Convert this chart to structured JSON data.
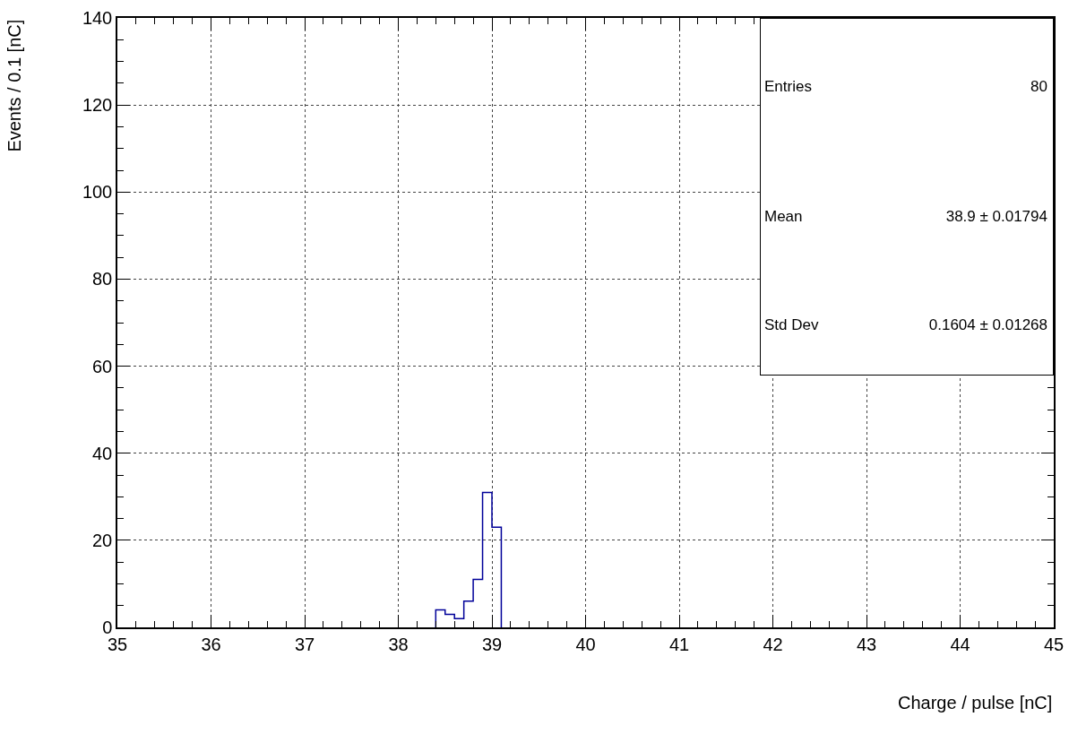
{
  "chart_data": {
    "type": "histogram",
    "xlabel": "Charge / pulse [nC]",
    "ylabel": "Events / 0.1 [nC]",
    "bins": [
      38.4,
      38.5,
      38.6,
      38.7,
      38.8,
      38.9,
      39.0,
      39.1
    ],
    "values": [
      4,
      3,
      2,
      6,
      11,
      31,
      23
    ],
    "color": "#000099",
    "xlim": [
      35,
      45
    ],
    "xticks": [
      35,
      36,
      37,
      38,
      39,
      40,
      41,
      42,
      43,
      44,
      45
    ],
    "ylim": [
      0,
      140
    ],
    "yticks": [
      0,
      20,
      40,
      60,
      80,
      100,
      120,
      140
    ],
    "grid": true,
    "line_style": "solid",
    "annotations": [
      "Entries",
      "80",
      "Mean",
      "38.9 ± 0.01794",
      "Std Dev",
      "0.1604 ± 0.01268"
    ]
  }
}
